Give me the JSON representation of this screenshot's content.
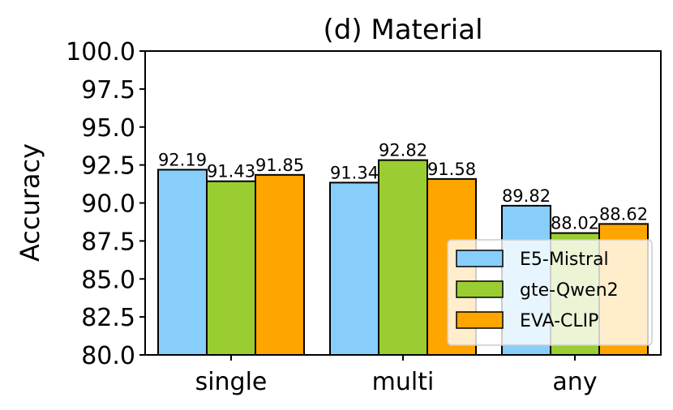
{
  "chart_data": {
    "type": "bar",
    "title": "(d) Material",
    "xlabel": "",
    "ylabel": "Accuracy",
    "ylim": [
      80.0,
      100.0
    ],
    "yticks": [
      "80.0",
      "82.5",
      "85.0",
      "87.5",
      "90.0",
      "92.5",
      "95.0",
      "97.5",
      "100.0"
    ],
    "categories": [
      "single",
      "multi",
      "any"
    ],
    "series": [
      {
        "name": "E5-Mistral",
        "color": "#87CEFA",
        "values": [
          92.19,
          91.34,
          89.82
        ],
        "labels": [
          "92.19",
          "91.34",
          "89.82"
        ]
      },
      {
        "name": "gte-Qwen2",
        "color": "#9ACD32",
        "values": [
          91.43,
          92.82,
          88.02
        ],
        "labels": [
          "91.43",
          "92.82",
          "88.02"
        ]
      },
      {
        "name": "EVA-CLIP",
        "color": "#FFA500",
        "values": [
          91.85,
          91.58,
          88.62
        ],
        "labels": [
          "91.85",
          "91.58",
          "88.62"
        ]
      }
    ],
    "legend_position": "lower-right",
    "grid": false
  }
}
